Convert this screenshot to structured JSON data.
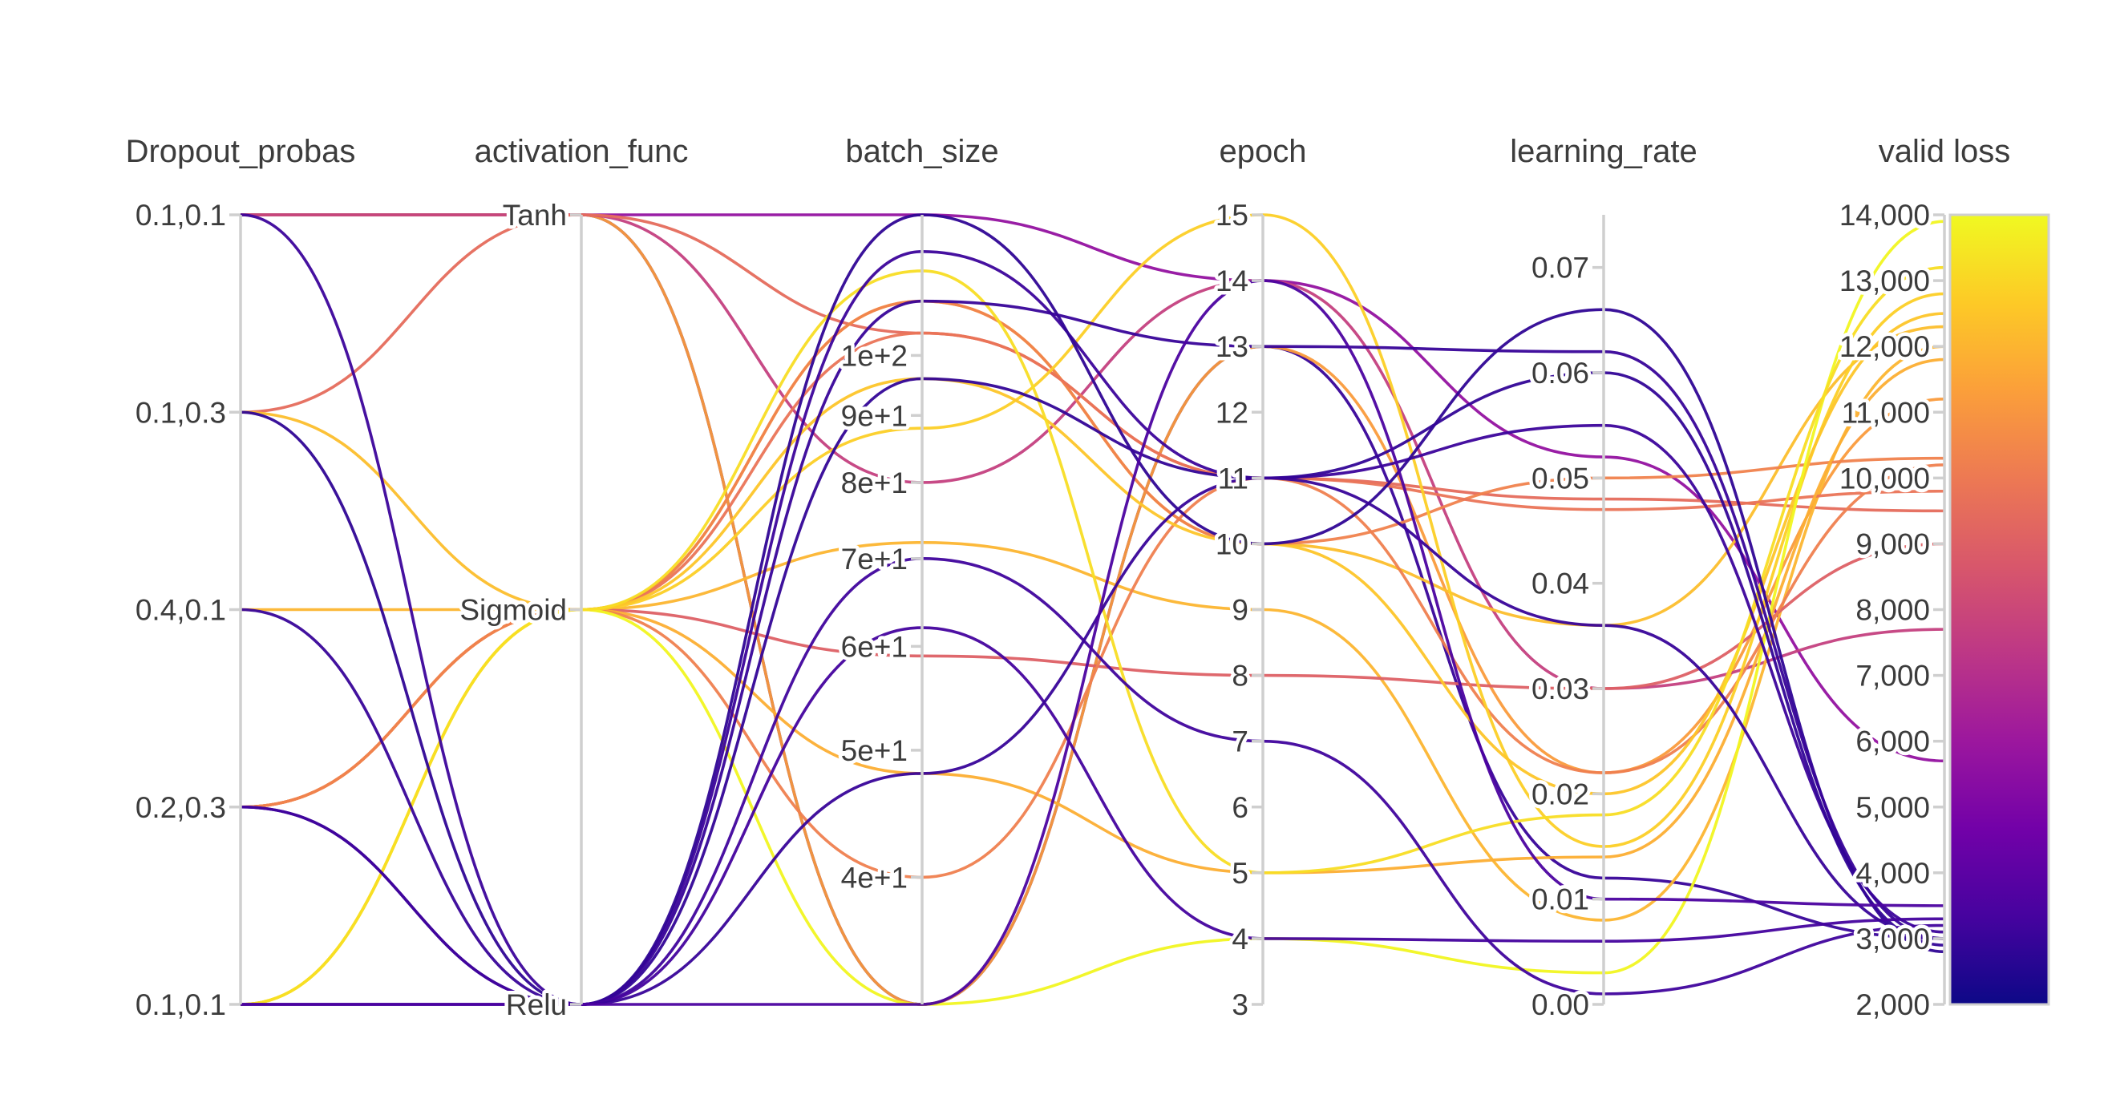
{
  "chart_data": {
    "type": "parallel_coordinates",
    "title": "",
    "axes": [
      {
        "key": "dropout",
        "label": "Dropout_probas",
        "kind": "categorical",
        "ticks": [
          "0.1,0.1",
          "0.1,0.3",
          "0.4,0.1",
          "0.2,0.3",
          "0.1,0.1"
        ]
      },
      {
        "key": "activation",
        "label": "activation_func",
        "kind": "categorical",
        "ticks": [
          "Tanh",
          "Sigmoid",
          "Relu"
        ]
      },
      {
        "key": "batch_size",
        "label": "batch_size",
        "kind": "log",
        "range": [
          32,
          128
        ],
        "tick_values": [
          100,
          90,
          80,
          70,
          60,
          50,
          40
        ],
        "ticks": [
          "1e+2",
          "9e+1",
          "8e+1",
          "7e+1",
          "6e+1",
          "5e+1",
          "4e+1"
        ]
      },
      {
        "key": "epoch",
        "label": "epoch",
        "kind": "linear",
        "range": [
          3,
          15
        ],
        "tick_values": [
          15,
          14,
          13,
          12,
          11,
          10,
          9,
          8,
          7,
          6,
          5,
          4,
          3
        ],
        "ticks": [
          "15",
          "14",
          "13",
          "12",
          "11",
          "10",
          "9",
          "8",
          "7",
          "6",
          "5",
          "4",
          "3"
        ]
      },
      {
        "key": "learning_rate",
        "label": "learning_rate",
        "kind": "linear",
        "range": [
          0,
          0.075
        ],
        "tick_values": [
          0.07,
          0.06,
          0.05,
          0.04,
          0.03,
          0.02,
          0.01,
          0.0
        ],
        "ticks": [
          "0.07",
          "0.06",
          "0.05",
          "0.04",
          "0.03",
          "0.02",
          "0.01",
          "0.00"
        ]
      },
      {
        "key": "valid_loss",
        "label": "valid loss",
        "kind": "linear",
        "range": [
          2000,
          14000
        ],
        "tick_values": [
          14000,
          13000,
          12000,
          11000,
          10000,
          9000,
          8000,
          7000,
          6000,
          5000,
          4000,
          3000,
          2000
        ],
        "ticks": [
          "14,000",
          "13,000",
          "12,000",
          "11,000",
          "10,000",
          "9,000",
          "8,000",
          "7,000",
          "6,000",
          "5,000",
          "4,000",
          "3,000",
          "2,000"
        ]
      }
    ],
    "colorscale": {
      "name": "plasma",
      "range": [
        2000,
        14000
      ],
      "stops": [
        "#0d0887",
        "#46039f",
        "#7201a8",
        "#9c179e",
        "#bd3786",
        "#d8576b",
        "#ed7953",
        "#fb9f3a",
        "#fdca26",
        "#f0f921"
      ]
    },
    "runs": [
      {
        "dropout": 0,
        "activation": "Tanh",
        "batch_size": 128,
        "epoch": 14,
        "learning_rate": 0.052,
        "valid_loss": 5700
      },
      {
        "dropout": 0,
        "activation": "Tanh",
        "batch_size": 32,
        "epoch": 13,
        "learning_rate": 0.012,
        "valid_loss": 3000
      },
      {
        "dropout": 0,
        "activation": "Tanh",
        "batch_size": 32,
        "epoch": 13,
        "learning_rate": 0.022,
        "valid_loss": 11200
      },
      {
        "dropout": 0,
        "activation": "Tanh",
        "batch_size": 80,
        "epoch": 14,
        "learning_rate": 0.03,
        "valid_loss": 7700
      },
      {
        "dropout": 1,
        "activation": "Tanh",
        "batch_size": 104,
        "epoch": 11,
        "learning_rate": 0.048,
        "valid_loss": 9500
      },
      {
        "dropout": 1,
        "activation": "Sigmoid",
        "batch_size": 110,
        "epoch": 10,
        "learning_rate": 0.036,
        "valid_loss": 12300
      },
      {
        "dropout": 2,
        "activation": "Sigmoid",
        "batch_size": 72,
        "epoch": 9,
        "learning_rate": 0.008,
        "valid_loss": 12000
      },
      {
        "dropout": 3,
        "activation": "Sigmoid",
        "batch_size": 110,
        "epoch": 10,
        "learning_rate": 0.05,
        "valid_loss": 10300
      },
      {
        "dropout": 3,
        "activation": "Sigmoid",
        "batch_size": 104,
        "epoch": 11,
        "learning_rate": 0.047,
        "valid_loss": 9800
      },
      {
        "dropout": 3,
        "activation": "Sigmoid",
        "batch_size": 59,
        "epoch": 8,
        "learning_rate": 0.03,
        "valid_loss": 9000
      },
      {
        "dropout": 3,
        "activation": "Sigmoid",
        "batch_size": 48,
        "epoch": 5,
        "learning_rate": 0.014,
        "valid_loss": 11800
      },
      {
        "dropout": 3,
        "activation": "Sigmoid",
        "batch_size": 40,
        "epoch": 11,
        "learning_rate": 0.022,
        "valid_loss": 10200
      },
      {
        "dropout": 4,
        "activation": "Sigmoid",
        "batch_size": 88,
        "epoch": 15,
        "learning_rate": 0.015,
        "valid_loss": 12800
      },
      {
        "dropout": 4,
        "activation": "Sigmoid",
        "batch_size": 96,
        "epoch": 10,
        "learning_rate": 0.02,
        "valid_loss": 12500
      },
      {
        "dropout": 4,
        "activation": "Sigmoid",
        "batch_size": 32,
        "epoch": 4,
        "learning_rate": 0.003,
        "valid_loss": 13900
      },
      {
        "dropout": 4,
        "activation": "Sigmoid",
        "batch_size": 116,
        "epoch": 5,
        "learning_rate": 0.018,
        "valid_loss": 13200
      },
      {
        "dropout": 0,
        "activation": "Relu",
        "batch_size": 120,
        "epoch": 11,
        "learning_rate": 0.055,
        "valid_loss": 3100
      },
      {
        "dropout": 1,
        "activation": "Relu",
        "batch_size": 128,
        "epoch": 10,
        "learning_rate": 0.066,
        "valid_loss": 2800
      },
      {
        "dropout": 2,
        "activation": "Relu",
        "batch_size": 110,
        "epoch": 13,
        "learning_rate": 0.062,
        "valid_loss": 3000
      },
      {
        "dropout": 3,
        "activation": "Relu",
        "batch_size": 96,
        "epoch": 11,
        "learning_rate": 0.06,
        "valid_loss": 2900
      },
      {
        "dropout": 3,
        "activation": "Relu",
        "batch_size": 70,
        "epoch": 7,
        "learning_rate": 0.001,
        "valid_loss": 3200
      },
      {
        "dropout": 4,
        "activation": "Relu",
        "batch_size": 62,
        "epoch": 4,
        "learning_rate": 0.006,
        "valid_loss": 3300
      },
      {
        "dropout": 4,
        "activation": "Relu",
        "batch_size": 48,
        "epoch": 11,
        "learning_rate": 0.036,
        "valid_loss": 3000
      },
      {
        "dropout": 4,
        "activation": "Relu",
        "batch_size": 32,
        "epoch": 14,
        "learning_rate": 0.01,
        "valid_loss": 3500
      }
    ]
  }
}
